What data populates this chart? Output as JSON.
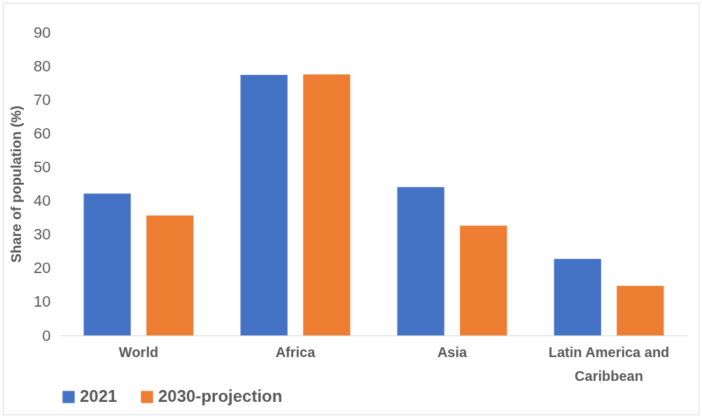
{
  "chart_data": {
    "type": "bar",
    "ylabel": "Share of population (%)",
    "categories": [
      "World",
      "Africa",
      "Asia",
      "Latin America and Caribbean"
    ],
    "series": [
      {
        "name": "2021",
        "color": "#4472c4",
        "values": [
          42.1,
          77.3,
          44.0,
          22.7
        ]
      },
      {
        "name": "2030-projection",
        "color": "#ed7d31",
        "values": [
          35.6,
          77.5,
          32.6,
          14.7
        ]
      }
    ],
    "ylim": [
      0,
      90
    ],
    "yticks": [
      0,
      10,
      20,
      30,
      40,
      50,
      60,
      70,
      80,
      90
    ],
    "grid": false,
    "legend": "bottom"
  }
}
